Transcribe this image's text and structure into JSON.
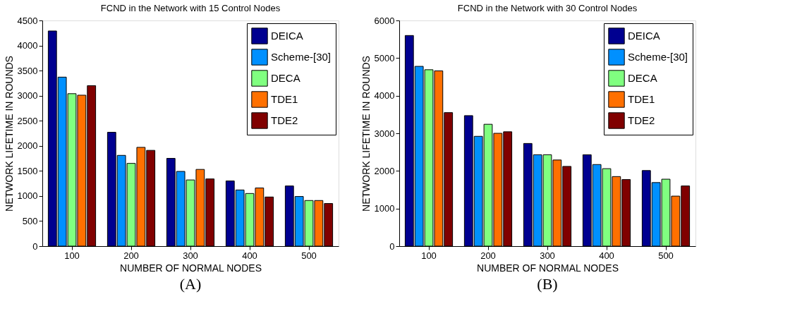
{
  "chart_data": [
    {
      "type": "bar",
      "title": "FCND in the Network with 15 Control Nodes",
      "xlabel": "NUMBER OF NORMAL NODES",
      "ylabel": "NETWORK LIFETIME IN ROUNDS",
      "categories": [
        "100",
        "200",
        "300",
        "400",
        "500"
      ],
      "series": [
        {
          "name": "DEICA",
          "color": "#000090",
          "values": [
            4290,
            2270,
            1750,
            1300,
            1200
          ]
        },
        {
          "name": "Scheme-[30]",
          "color": "#0090ff",
          "values": [
            3370,
            1810,
            1490,
            1120,
            990
          ]
        },
        {
          "name": "DECA",
          "color": "#80ff80",
          "values": [
            3040,
            1650,
            1320,
            1050,
            910
          ]
        },
        {
          "name": "TDE1",
          "color": "#ff7000",
          "values": [
            3010,
            1970,
            1530,
            1160,
            910
          ]
        },
        {
          "name": "TDE2",
          "color": "#800000",
          "values": [
            3200,
            1910,
            1340,
            980,
            850
          ]
        }
      ],
      "ylim": [
        0,
        4500
      ],
      "yticks": [
        0,
        500,
        1000,
        1500,
        2000,
        2500,
        3000,
        3500,
        4000,
        4500
      ],
      "grid": false,
      "legend": "top right",
      "annotations": [
        "(A)"
      ]
    },
    {
      "type": "bar",
      "title": "FCND in the Network with 30 Control Nodes",
      "xlabel": "NUMBER OF NORMAL NODES",
      "ylabel": "NETWORK LIFETIME IN ROUNDS",
      "categories": [
        "100",
        "200",
        "300",
        "400",
        "500"
      ],
      "series": [
        {
          "name": "DEICA",
          "color": "#000090",
          "values": [
            5600,
            3470,
            2730,
            2430,
            2010
          ]
        },
        {
          "name": "Scheme-[30]",
          "color": "#0090ff",
          "values": [
            4780,
            2920,
            2430,
            2170,
            1690
          ]
        },
        {
          "name": "DECA",
          "color": "#80ff80",
          "values": [
            4690,
            3240,
            2430,
            2060,
            1780
          ]
        },
        {
          "name": "TDE1",
          "color": "#ff7000",
          "values": [
            4660,
            3000,
            2290,
            1850,
            1330
          ]
        },
        {
          "name": "TDE2",
          "color": "#800000",
          "values": [
            3550,
            3040,
            2120,
            1770,
            1600
          ]
        }
      ],
      "ylim": [
        0,
        6000
      ],
      "yticks": [
        0,
        1000,
        2000,
        3000,
        4000,
        5000,
        6000
      ],
      "grid": false,
      "legend": "top right",
      "annotations": [
        "(B)"
      ]
    }
  ]
}
